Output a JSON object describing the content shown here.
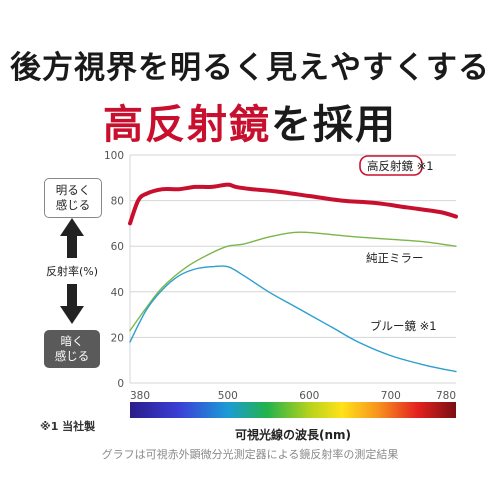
{
  "headline": {
    "line1": "後方視界を明るく見えやすくする",
    "line2_red": "高反射鏡",
    "line2_black": "を採用"
  },
  "side": {
    "bright_label": "明るく\n感じる",
    "dark_label": "暗く\n感じる",
    "axis_label": "反射率(%)"
  },
  "footnote": "※1 当社製",
  "caption": "グラフは可視赤外顕微分光測定器による鏡反射率の測定結果",
  "colors": {
    "red": "#c8102e",
    "green": "#7ab648",
    "blue": "#2a9fd0",
    "grid": "#d6d6d6",
    "axis_text": "#555555"
  },
  "chart_data": {
    "type": "line",
    "xlabel": "可視光線の波長(nm)",
    "ylabel": "",
    "xlim": [
      380,
      780
    ],
    "ylim": [
      0,
      100
    ],
    "x_ticks": [
      380,
      500,
      600,
      700,
      780
    ],
    "y_ticks": [
      0,
      20,
      40,
      60,
      80,
      100
    ],
    "grid": true,
    "spectrum_bar": true,
    "series": [
      {
        "name": "高反射鏡 ※1",
        "color": "#c8102e",
        "highlighted": true,
        "x": [
          380,
          390,
          400,
          420,
          440,
          460,
          480,
          500,
          510,
          530,
          560,
          600,
          640,
          680,
          720,
          760,
          780
        ],
        "y": [
          70,
          80,
          83,
          85,
          85,
          86,
          86,
          87,
          86,
          85,
          84,
          82,
          80,
          79,
          77,
          75,
          73
        ]
      },
      {
        "name": "純正ミラー",
        "color": "#7ab648",
        "highlighted": false,
        "x": [
          380,
          400,
          420,
          450,
          480,
          500,
          520,
          550,
          580,
          600,
          630,
          660,
          700,
          740,
          780
        ],
        "y": [
          23,
          33,
          42,
          51,
          57,
          60,
          61,
          64,
          66,
          66,
          65,
          64,
          63,
          62,
          60
        ]
      },
      {
        "name": "ブルー鏡 ※1",
        "color": "#2a9fd0",
        "highlighted": false,
        "x": [
          380,
          400,
          420,
          440,
          460,
          480,
          500,
          520,
          550,
          580,
          600,
          630,
          660,
          700,
          740,
          780
        ],
        "y": [
          18,
          32,
          41,
          47,
          50,
          51,
          51,
          47,
          40,
          34,
          30,
          24,
          18,
          12,
          8,
          5
        ]
      }
    ]
  }
}
